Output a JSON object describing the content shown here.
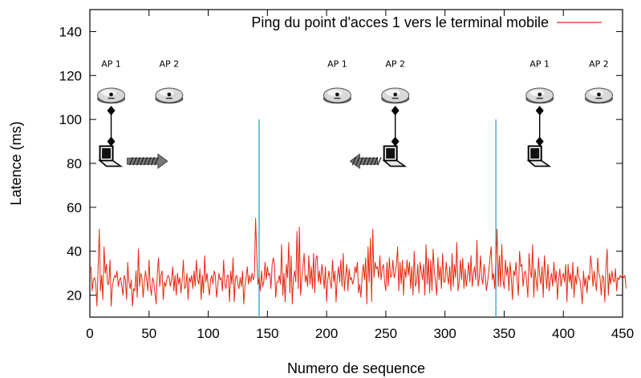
{
  "chart_data": {
    "type": "line",
    "title": "",
    "xlabel": "Numero de sequence",
    "ylabel": "Latence (ms)",
    "xlim": [
      0,
      450
    ],
    "ylim": [
      10,
      150
    ],
    "x_ticks": [
      0,
      50,
      100,
      150,
      200,
      250,
      300,
      350,
      400,
      450
    ],
    "y_ticks": [
      20,
      40,
      60,
      80,
      100,
      120,
      140
    ],
    "grid": false,
    "legend": "top-right",
    "series": [
      {
        "name": "Ping du point d'acces 1 vers le terminal mobile",
        "color": "#e8260f",
        "x_start": 1,
        "x_step": 1,
        "values": [
          33,
          22,
          27,
          28,
          25,
          15,
          33,
          50,
          22,
          29,
          18,
          42,
          30,
          34,
          25,
          25,
          36,
          15,
          24,
          27,
          29,
          28,
          31,
          24,
          27,
          28,
          24,
          20,
          29,
          27,
          18,
          35,
          26,
          23,
          27,
          15,
          23,
          22,
          31,
          19,
          41,
          24,
          30,
          28,
          19,
          26,
          31,
          27,
          22,
          36,
          24,
          20,
          28,
          26,
          21,
          16,
          30,
          37,
          24,
          29,
          31,
          18,
          26,
          24,
          27,
          29,
          28,
          24,
          27,
          33,
          22,
          29,
          20,
          30,
          25,
          28,
          21,
          27,
          36,
          23,
          24,
          30,
          18,
          28,
          26,
          29,
          23,
          31,
          24,
          36,
          27,
          25,
          32,
          18,
          29,
          21,
          38,
          26,
          30,
          24,
          20,
          27,
          29,
          25,
          31,
          29,
          19,
          24,
          30,
          27,
          28,
          22,
          36,
          25,
          23,
          29,
          29,
          17,
          31,
          25,
          37,
          17,
          28,
          29,
          25,
          23,
          28,
          24,
          31,
          16,
          24,
          28,
          33,
          25,
          29,
          26,
          30,
          27,
          29,
          55,
          38,
          25,
          28,
          22,
          31,
          24,
          26,
          35,
          27,
          33,
          29,
          30,
          23,
          34,
          37,
          34,
          19,
          26,
          26,
          29,
          25,
          43,
          20,
          30,
          17,
          34,
          28,
          44,
          21,
          38,
          16,
          28,
          31,
          26,
          49,
          23,
          51,
          20,
          27,
          33,
          39,
          26,
          29,
          24,
          38,
          25,
          33,
          23,
          39,
          21,
          37,
          38,
          26,
          31,
          25,
          34,
          29,
          23,
          33,
          17,
          27,
          31,
          26,
          23,
          36,
          26,
          31,
          17,
          28,
          33,
          26,
          36,
          24,
          39,
          22,
          29,
          34,
          22,
          32,
          27,
          28,
          25,
          27,
          33,
          30,
          35,
          21,
          25,
          19,
          29,
          34,
          27,
          37,
          16,
          42,
          26,
          46,
          17,
          50,
          28,
          35,
          32,
          33,
          28,
          38,
          27,
          32,
          34,
          26,
          22,
          35,
          24,
          37,
          28,
          29,
          36,
          28,
          30,
          34,
          42,
          22,
          35,
          25,
          36,
          20,
          32,
          28,
          36,
          29,
          35,
          23,
          33,
          20,
          40,
          24,
          26,
          34,
          21,
          35,
          31,
          27,
          34,
          20,
          43,
          25,
          37,
          21,
          36,
          22,
          41,
          31,
          26,
          20,
          37,
          27,
          33,
          23,
          39,
          26,
          26,
          35,
          29,
          25,
          33,
          22,
          39,
          24,
          34,
          28,
          44,
          22,
          26,
          36,
          27,
          37,
          23,
          32,
          24,
          29,
          35,
          26,
          38,
          24,
          30,
          33,
          27,
          45,
          24,
          28,
          38,
          28,
          25,
          34,
          29,
          22,
          26,
          31,
          37,
          42,
          27,
          30,
          23,
          35,
          50,
          24,
          38,
          24,
          43,
          27,
          23,
          36,
          29,
          33,
          22,
          35,
          28,
          18,
          31,
          29,
          35,
          26,
          20,
          40,
          33,
          34,
          24,
          30,
          31,
          26,
          19,
          39,
          31,
          28,
          43,
          19,
          32,
          27,
          22,
          37,
          29,
          25,
          33,
          19,
          38,
          30,
          23,
          34,
          22,
          27,
          30,
          24,
          35,
          26,
          31,
          18,
          27,
          32,
          24,
          28,
          30,
          26,
          34,
          17,
          34,
          26,
          30,
          23,
          35,
          19,
          29,
          25,
          33,
          28,
          27,
          22,
          16,
          31,
          24,
          28,
          21,
          29,
          27,
          38,
          33,
          24,
          31,
          26,
          22,
          37,
          30,
          28,
          20,
          29,
          28,
          17,
          33,
          41,
          20,
          30,
          25,
          31,
          27,
          26,
          32,
          22,
          28,
          27,
          29,
          28,
          29,
          28,
          29,
          23
        ]
      }
    ],
    "vertical_markers": [
      {
        "x": 143,
        "y_from": 10,
        "y_to": 100,
        "color": "#1ea6d9"
      },
      {
        "x": 343,
        "y_from": 10,
        "y_to": 100,
        "color": "#1ea6d9"
      }
    ],
    "annotations": {
      "ap1_label": "AP 1",
      "ap2_label": "AP 2",
      "scenes": [
        {
          "ap1_x": 18,
          "ap2_x": 67,
          "laptop": "ap1",
          "arrow": "right"
        },
        {
          "ap1_x": 209,
          "ap2_x": 258,
          "laptop": "ap2",
          "arrow": "left"
        },
        {
          "ap1_x": 380,
          "ap2_x": 430,
          "laptop": "ap1",
          "arrow": "none"
        }
      ]
    }
  }
}
